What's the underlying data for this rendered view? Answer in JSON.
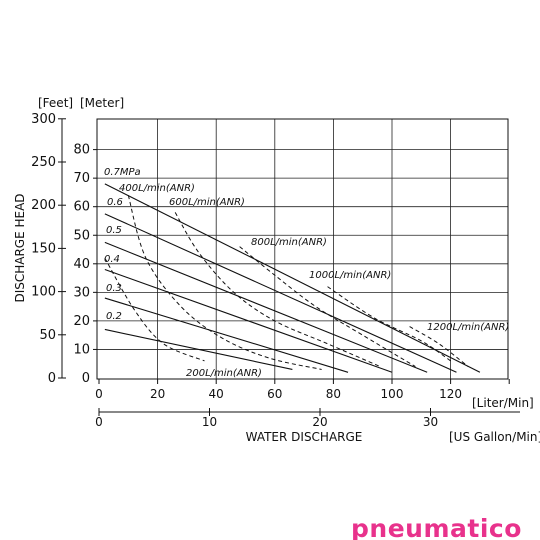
{
  "chart_data": {
    "type": "line",
    "title": "",
    "ylabel": "DISCHARGE HEAD",
    "xlabel": "WATER DISCHARGE",
    "y_unit_feet": "[Feet]",
    "y_unit_meter": "[Meter]",
    "x_unit_liter": "[Liter/Min]",
    "x_unit_gallon": "[US Gallon/Min]",
    "xlim_liter": [
      0,
      140
    ],
    "ylim_meter": [
      0,
      90
    ],
    "grid": true,
    "liter_ticks": [
      "0",
      "20",
      "40",
      "60",
      "80",
      "100",
      "120"
    ],
    "gallon_ticks": [
      "0",
      "10",
      "20",
      "30"
    ],
    "feet_ticks": [
      "0",
      "50",
      "100",
      "150",
      "200",
      "250",
      "300"
    ],
    "meter_ticks": [
      "10",
      "20",
      "30",
      "40",
      "50",
      "60",
      "70",
      "80"
    ],
    "pressure_series": [
      {
        "name": "0.7MPa",
        "points": [
          [
            2,
            68
          ],
          [
            130,
            2
          ]
        ]
      },
      {
        "name": "0.6",
        "points": [
          [
            2,
            57.5
          ],
          [
            122,
            2
          ]
        ]
      },
      {
        "name": "0.5",
        "points": [
          [
            2,
            47.5
          ],
          [
            112,
            2
          ]
        ]
      },
      {
        "name": "0.4",
        "points": [
          [
            2,
            38
          ],
          [
            100,
            2
          ]
        ]
      },
      {
        "name": "0.3",
        "points": [
          [
            2,
            28
          ],
          [
            85,
            2
          ]
        ]
      },
      {
        "name": "0.2",
        "points": [
          [
            2,
            17
          ],
          [
            66,
            3
          ]
        ]
      }
    ],
    "airflow_series": [
      {
        "name": "200L/min(ANR)",
        "points": [
          [
            2,
            42
          ],
          [
            12,
            24
          ],
          [
            22,
            12
          ],
          [
            36,
            6
          ]
        ]
      },
      {
        "name": "400L/min(ANR)",
        "points": [
          [
            10,
            64
          ],
          [
            16,
            42
          ],
          [
            28,
            25
          ],
          [
            42,
            14
          ],
          [
            58,
            7
          ],
          [
            76,
            3
          ]
        ]
      },
      {
        "name": "600L/min(ANR)",
        "points": [
          [
            26,
            58
          ],
          [
            34,
            44
          ],
          [
            46,
            30
          ],
          [
            60,
            20
          ],
          [
            78,
            12
          ],
          [
            96,
            4
          ]
        ]
      },
      {
        "name": "800L/min(ANR)",
        "points": [
          [
            48,
            46
          ],
          [
            60,
            36
          ],
          [
            74,
            25
          ],
          [
            90,
            15
          ],
          [
            108,
            4
          ]
        ]
      },
      {
        "name": "1000L/min(ANR)",
        "points": [
          [
            78,
            32
          ],
          [
            94,
            21
          ],
          [
            110,
            13
          ],
          [
            120,
            6
          ]
        ]
      },
      {
        "name": "1200L/min(ANR)",
        "points": [
          [
            106,
            18
          ],
          [
            116,
            12
          ],
          [
            126,
            4
          ]
        ]
      }
    ]
  },
  "brand": {
    "logo_text": "pneumatico",
    "color": "#e8328c"
  }
}
